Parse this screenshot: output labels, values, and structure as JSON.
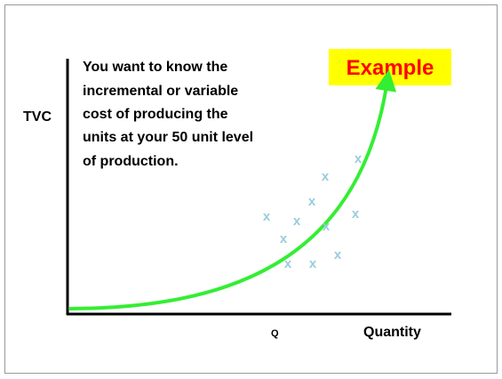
{
  "slide": {
    "title": "Example",
    "y_axis_label": "TVC",
    "x_axis_label": "Quantity",
    "x_marker_label": "Q",
    "body_lines": [
      "You want to know the",
      "incremental or variable",
      "cost of producing the",
      "units at your 50 unit level",
      "of production."
    ],
    "scatter_marks": [
      "x",
      "x",
      "x",
      "x",
      "x",
      "x",
      "x",
      "x",
      "x",
      "x",
      "x"
    ]
  }
}
